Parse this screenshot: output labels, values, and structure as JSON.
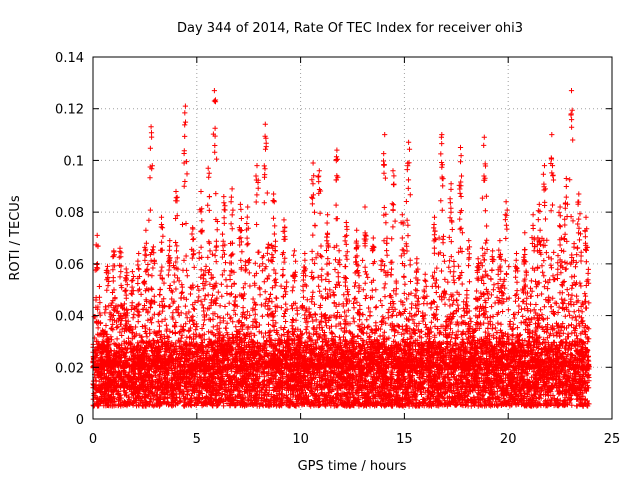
{
  "chart_data": {
    "type": "scatter",
    "title": "Day 344 of 2014, Rate Of TEC Index for receiver ohi3",
    "xlabel": "GPS time / hours",
    "ylabel": "ROTI / TECUs",
    "xlim": [
      0,
      25
    ],
    "ylim": [
      0,
      0.14
    ],
    "xticks": [
      0,
      5,
      10,
      15,
      20,
      25
    ],
    "yticks": [
      0,
      0.02,
      0.04,
      0.06,
      0.08,
      0.1,
      0.12,
      0.14
    ],
    "xtick_labels": [
      "0",
      "5",
      "10",
      "15",
      "20",
      "25"
    ],
    "ytick_labels": [
      "0",
      "0.02",
      "0.04",
      "0.06",
      "0.08",
      "0.1",
      "0.12",
      "0.14"
    ],
    "grid": true,
    "marker": "+",
    "marker_color": "#ff0000",
    "x_range_of_data": [
      0,
      23.9
    ],
    "baseline_band": [
      0.005,
      0.03
    ],
    "peaks": [
      {
        "x": 0.2,
        "y": 0.071
      },
      {
        "x": 0.7,
        "y": 0.059
      },
      {
        "x": 1.0,
        "y": 0.065
      },
      {
        "x": 1.3,
        "y": 0.066
      },
      {
        "x": 1.6,
        "y": 0.058
      },
      {
        "x": 1.9,
        "y": 0.057
      },
      {
        "x": 2.2,
        "y": 0.064
      },
      {
        "x": 2.55,
        "y": 0.073
      },
      {
        "x": 2.8,
        "y": 0.113
      },
      {
        "x": 3.3,
        "y": 0.078
      },
      {
        "x": 3.7,
        "y": 0.069
      },
      {
        "x": 4.0,
        "y": 0.088
      },
      {
        "x": 4.45,
        "y": 0.121
      },
      {
        "x": 4.8,
        "y": 0.074
      },
      {
        "x": 5.2,
        "y": 0.088
      },
      {
        "x": 5.55,
        "y": 0.097
      },
      {
        "x": 5.85,
        "y": 0.127
      },
      {
        "x": 6.3,
        "y": 0.086
      },
      {
        "x": 6.7,
        "y": 0.089
      },
      {
        "x": 7.1,
        "y": 0.083
      },
      {
        "x": 7.45,
        "y": 0.082
      },
      {
        "x": 7.9,
        "y": 0.098
      },
      {
        "x": 8.3,
        "y": 0.114
      },
      {
        "x": 8.7,
        "y": 0.087
      },
      {
        "x": 9.2,
        "y": 0.077
      },
      {
        "x": 9.7,
        "y": 0.065
      },
      {
        "x": 10.2,
        "y": 0.064
      },
      {
        "x": 10.6,
        "y": 0.099
      },
      {
        "x": 10.9,
        "y": 0.096
      },
      {
        "x": 11.3,
        "y": 0.079
      },
      {
        "x": 11.75,
        "y": 0.104
      },
      {
        "x": 12.2,
        "y": 0.076
      },
      {
        "x": 12.7,
        "y": 0.073
      },
      {
        "x": 13.1,
        "y": 0.082
      },
      {
        "x": 13.5,
        "y": 0.07
      },
      {
        "x": 14.05,
        "y": 0.11
      },
      {
        "x": 14.45,
        "y": 0.096
      },
      {
        "x": 14.9,
        "y": 0.079
      },
      {
        "x": 15.2,
        "y": 0.107
      },
      {
        "x": 15.6,
        "y": 0.062
      },
      {
        "x": 16.0,
        "y": 0.056
      },
      {
        "x": 16.45,
        "y": 0.078
      },
      {
        "x": 16.8,
        "y": 0.11
      },
      {
        "x": 17.25,
        "y": 0.091
      },
      {
        "x": 17.7,
        "y": 0.105
      },
      {
        "x": 18.1,
        "y": 0.069
      },
      {
        "x": 18.55,
        "y": 0.062
      },
      {
        "x": 18.85,
        "y": 0.109
      },
      {
        "x": 19.25,
        "y": 0.065
      },
      {
        "x": 19.6,
        "y": 0.069
      },
      {
        "x": 19.9,
        "y": 0.084
      },
      {
        "x": 20.4,
        "y": 0.064
      },
      {
        "x": 20.8,
        "y": 0.072
      },
      {
        "x": 21.2,
        "y": 0.079
      },
      {
        "x": 21.5,
        "y": 0.083
      },
      {
        "x": 21.75,
        "y": 0.098
      },
      {
        "x": 22.1,
        "y": 0.11
      },
      {
        "x": 22.5,
        "y": 0.082
      },
      {
        "x": 22.8,
        "y": 0.093
      },
      {
        "x": 23.05,
        "y": 0.127
      },
      {
        "x": 23.4,
        "y": 0.087
      },
      {
        "x": 23.75,
        "y": 0.078
      }
    ]
  }
}
